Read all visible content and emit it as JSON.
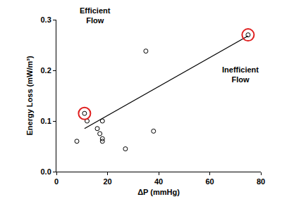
{
  "chart_data": {
    "type": "scatter",
    "x_label": "ΔP (mmHg)",
    "y_label": "Energy Loss (mW/m³)",
    "annotations": [
      "Efficient\nFlow",
      "Inefficient\nFlow"
    ],
    "xlim": [
      0,
      80
    ],
    "xticks": [
      0,
      20,
      40,
      60,
      80
    ],
    "ylim": [
      0,
      0.3
    ],
    "yticks": [
      {
        "value": 0,
        "label": "0.0"
      },
      0.1,
      0.2,
      0.3
    ],
    "grid": false,
    "series": [
      {
        "type": "scatter",
        "color": "#000000",
        "marker": "circle-open",
        "x": [
          8,
          11,
          12,
          16,
          17,
          18,
          18,
          18,
          27,
          35,
          38,
          75
        ],
        "values": [
          0.06,
          0.115,
          0.1,
          0.085,
          0.075,
          0.065,
          0.06,
          0.1,
          0.045,
          0.238,
          0.08,
          0.27
        ]
      },
      {
        "type": "scatter",
        "color": "#e02020",
        "marker": "ring",
        "x": [
          11,
          75
        ],
        "values": [
          0.115,
          0.27
        ]
      },
      {
        "type": "line",
        "color": "#000000",
        "line_style": "solid",
        "x": [
          11,
          75
        ],
        "values": [
          0.085,
          0.268
        ]
      }
    ]
  }
}
